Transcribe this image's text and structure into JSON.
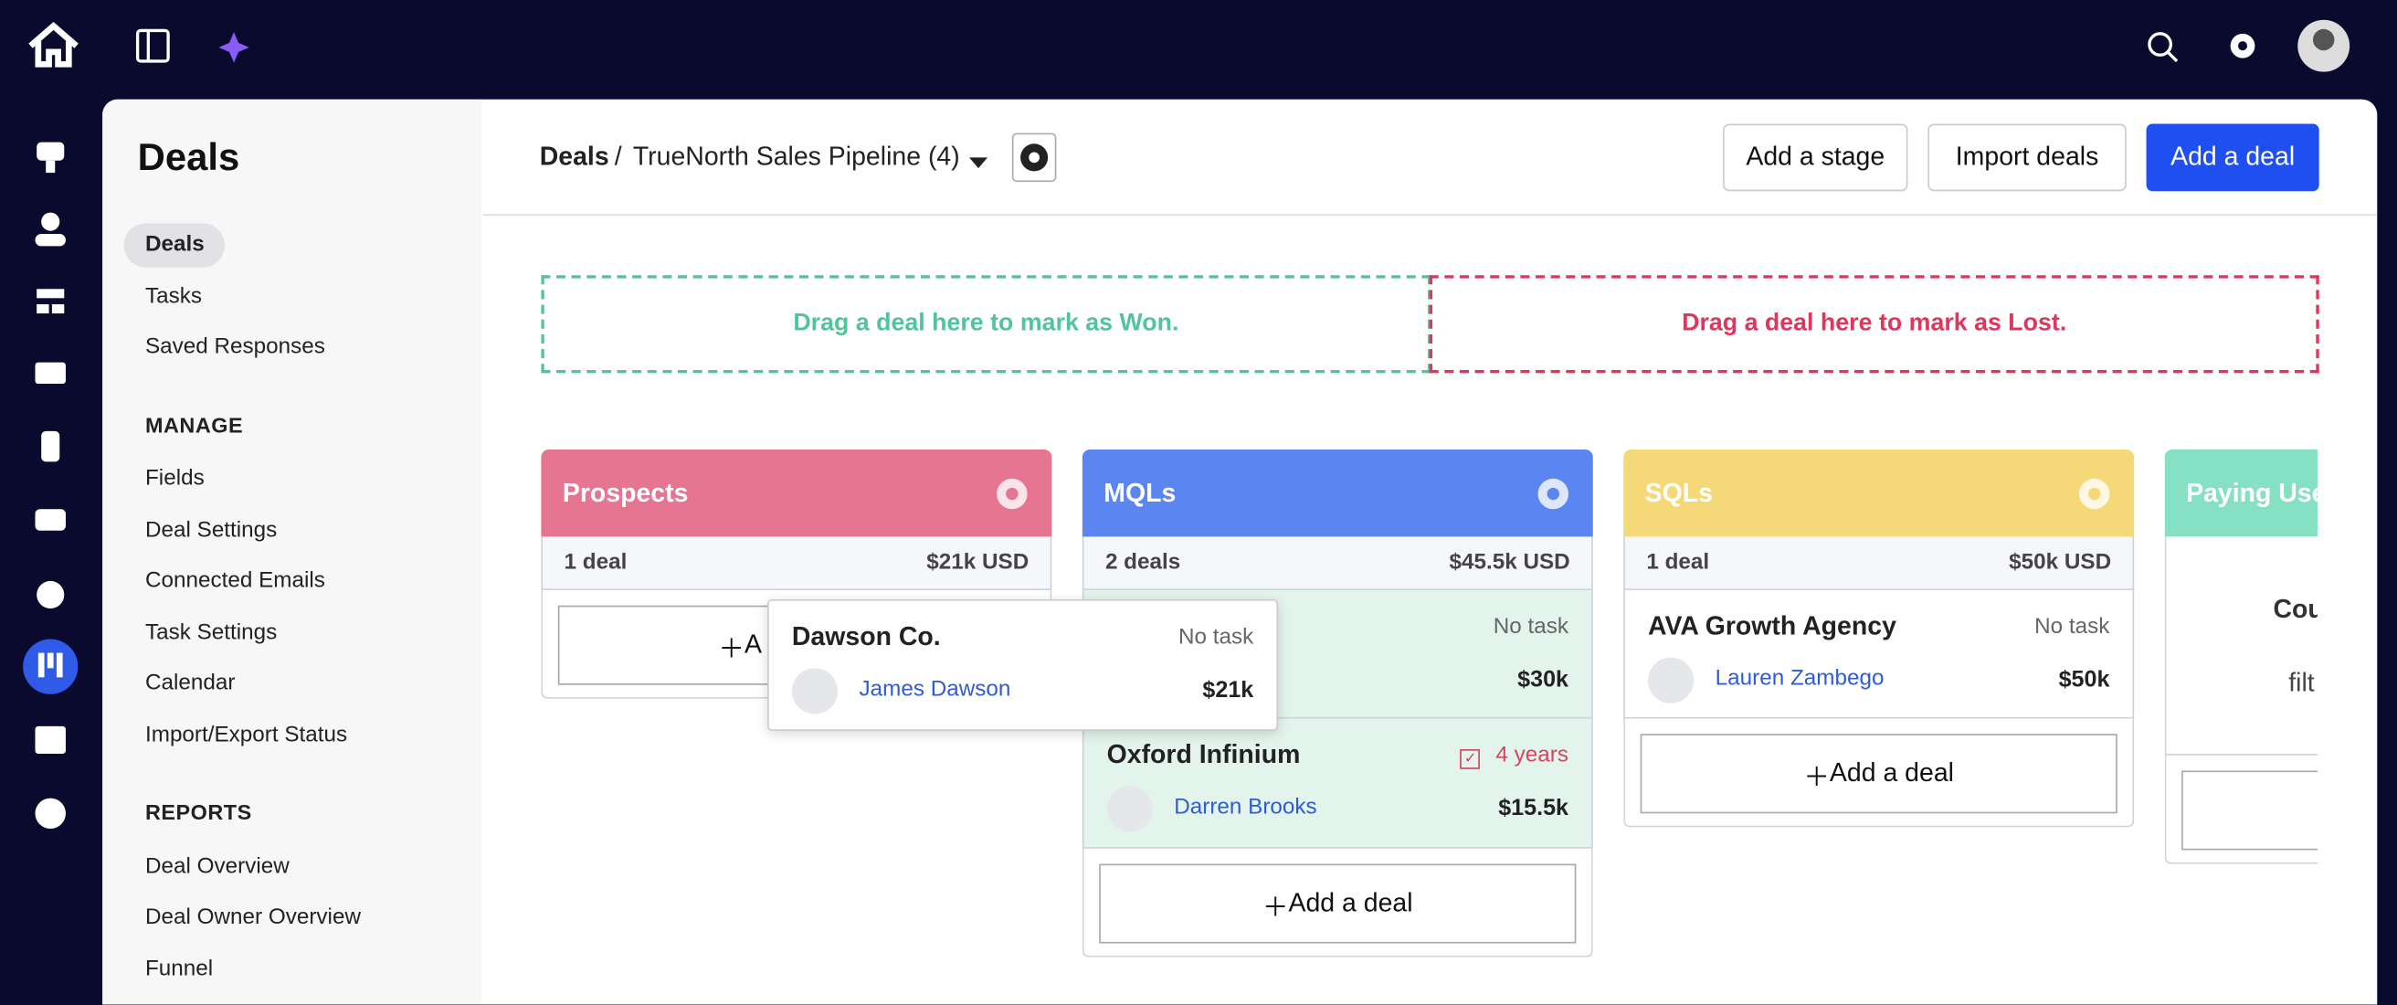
{
  "sidebar": {
    "title": "Deals",
    "items": [
      "Deals",
      "Tasks",
      "Saved Responses"
    ],
    "sections": [
      {
        "heading": "MANAGE",
        "items": [
          "Fields",
          "Deal Settings",
          "Connected Emails",
          "Task Settings",
          "Calendar",
          "Import/Export Status"
        ]
      },
      {
        "heading": "REPORTS",
        "items": [
          "Deal Overview",
          "Deal Owner Overview",
          "Funnel"
        ]
      }
    ]
  },
  "header": {
    "root": "Deals",
    "separator": "/",
    "pipeline": "TrueNorth Sales Pipeline (4)",
    "buttons": [
      "Add a stage",
      "Import deals",
      "Add a deal"
    ]
  },
  "dropzones": {
    "won": "Drag a deal here to mark as Won.",
    "lost": "Drag a deal here to mark as Lost."
  },
  "columns": [
    {
      "name": "Prospects",
      "count": "1 deal",
      "total": "$21k USD",
      "add": "A"
    },
    {
      "name": "MQLs",
      "count": "2 deals",
      "total": "$45.5k USD",
      "cards": [
        {
          "task": "No task",
          "amount": "$30k"
        },
        {
          "company": "Oxford Infinium",
          "task": "4 years",
          "contact": "Darren Brooks",
          "amount": "$15.5k"
        }
      ],
      "add": "Add a deal"
    },
    {
      "name": "SQLs",
      "count": "1 deal",
      "total": "$50k USD",
      "cards": [
        {
          "company": "AVA Growth Agency",
          "task": "No task",
          "contact": "Lauren Zambego",
          "amount": "$50k"
        }
      ],
      "add": "Add a deal"
    },
    {
      "name": "Paying Users",
      "empty": [
        "Cou",
        "filt"
      ]
    }
  ],
  "dragging": {
    "company": "Dawson Co.",
    "task": "No task",
    "contact": "James Dawson",
    "amount": "$21k"
  }
}
